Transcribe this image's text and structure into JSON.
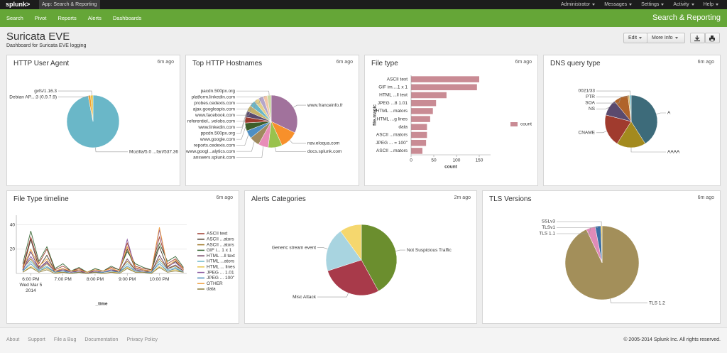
{
  "topbar": {
    "logo": "splunk>",
    "app": "App: Search & Reporting",
    "menu": [
      "Administrator",
      "Messages",
      "Settings",
      "Activity",
      "Help"
    ]
  },
  "nav": {
    "items": [
      "Search",
      "Pivot",
      "Reports",
      "Alerts",
      "Dashboards"
    ],
    "app_title": "Search & Reporting"
  },
  "header": {
    "title": "Suricata EVE",
    "subtitle": "Dashboard for Suricata EVE logging",
    "buttons": [
      "Edit",
      "More Info"
    ]
  },
  "chart_data": [
    {
      "type": "pie",
      "title": "HTTP User Agent",
      "updated": "6m ago",
      "categories": [
        "Mozilla/5.0 ...fari/537.36",
        "Debian AP...:3 (0.9.7.9)",
        "gvfs/1.16.3"
      ],
      "values": [
        97,
        1.5,
        1.5
      ],
      "colors": [
        "#6ab7c8",
        "#f0a030",
        "#e8c44a"
      ]
    },
    {
      "type": "pie",
      "title": "Top HTTP Hostnames",
      "updated": "6m ago",
      "categories": [
        "www.franceinfo.fr",
        "nav.eloqua.com",
        "docs.splunk.com",
        "answers.splunk.com",
        "www.googl...alytics.com",
        "reports.cedexis.com",
        "www.google.com",
        "ppcdn.500px.org",
        "www.linkedin.com",
        "referentiel...velobs.com",
        "www.facebook.com",
        "ajax.googleapis.com",
        "probes.cedexis.com",
        "platform.linkedin.com",
        "pacdn.500px.org"
      ],
      "values": [
        26,
        9,
        7,
        5,
        5,
        4,
        4,
        3,
        3,
        3,
        3,
        2.5,
        2.5,
        2,
        2
      ],
      "colors": [
        "#a1729c",
        "#f7902b",
        "#99c24d",
        "#e88db8",
        "#a08a5e",
        "#4e8fc4",
        "#3d5e2a",
        "#9e3b2e",
        "#5a4a6e",
        "#c7b36a",
        "#6ab7c8",
        "#e3d08a",
        "#b5a6c9",
        "#f3c6a6",
        "#c9d6a3"
      ]
    },
    {
      "type": "bar",
      "orientation": "horizontal",
      "title": "File type",
      "updated": "6m ago",
      "categories": [
        "ASCII text",
        "GIF im....1 x 1",
        "HTML ...ll text",
        "JPEG ...8 1.01",
        "HTML ...mators",
        "HTML ...g lines",
        "data",
        "ASCII ...mators",
        "JPEG ... = 100\"",
        "ASCII ...mators"
      ],
      "series": [
        {
          "name": "count",
          "color": "#c98b94",
          "values": [
            150,
            145,
            78,
            55,
            48,
            42,
            35,
            35,
            33,
            25
          ]
        }
      ],
      "xlim": [
        0,
        175
      ],
      "xticks": [
        0,
        50,
        100,
        150
      ],
      "x_label": "count",
      "y_label": "file.magic"
    },
    {
      "type": "pie",
      "title": "DNS query type",
      "updated": "6m ago",
      "categories": [
        "A",
        "AAAA",
        "CNAME",
        "NS",
        "SOA",
        "PTR",
        "0021/33"
      ],
      "values": [
        41,
        18,
        20,
        10,
        9,
        1,
        1
      ],
      "colors": [
        "#3d6b7a",
        "#a38a1e",
        "#a03b2e",
        "#5a4a6e",
        "#b0642a",
        "#d9b45a",
        "#6ab7c8"
      ]
    },
    {
      "type": "line",
      "title": "File Type timeline",
      "updated": "6m ago",
      "x_label": "_time",
      "grid": true,
      "x": [
        17.75,
        18,
        18.25,
        18.5,
        18.75,
        19,
        19.25,
        19.5,
        19.75,
        20,
        20.25,
        20.5,
        20.75,
        21,
        21.25,
        21.5,
        21.75,
        22,
        22.25,
        22.5,
        22.75
      ],
      "xlim": [
        17.55,
        22.85
      ],
      "xticks": [
        {
          "value": 18,
          "label": "6:00 PM\nWed Mar 5\n2014"
        },
        {
          "value": 19,
          "label": "7:00 PM"
        },
        {
          "value": 20,
          "label": "8:00 PM"
        },
        {
          "value": 21,
          "label": "9:00 PM"
        },
        {
          "value": 22,
          "label": "10:00 PM"
        }
      ],
      "ylim": [
        0,
        48
      ],
      "yticks": [
        20,
        40
      ],
      "series": [
        {
          "name": "ASCII text",
          "color": "#9e3b2e",
          "values": [
            5,
            30,
            8,
            20,
            3,
            6,
            2,
            4,
            1,
            3,
            2,
            5,
            3,
            25,
            6,
            4,
            3,
            30,
            8,
            12,
            4
          ]
        },
        {
          "name": "ASCII ...ators",
          "color": "#4a3a2a",
          "values": [
            3,
            28,
            5,
            15,
            2,
            4,
            1,
            3,
            1,
            2,
            1,
            3,
            2,
            20,
            4,
            3,
            2,
            22,
            5,
            10,
            3
          ]
        },
        {
          "name": "ASCII ...ators",
          "color": "#a07a2a",
          "values": [
            4,
            12,
            3,
            8,
            2,
            3,
            1,
            2,
            1,
            2,
            1,
            2,
            2,
            10,
            3,
            2,
            2,
            12,
            4,
            6,
            2
          ]
        },
        {
          "name": "GIF i... 1 x 1",
          "color": "#3d6b3a",
          "values": [
            8,
            35,
            10,
            22,
            4,
            8,
            2,
            5,
            1,
            4,
            2,
            6,
            3,
            18,
            8,
            5,
            3,
            25,
            10,
            14,
            5
          ]
        },
        {
          "name": "HTML ...ll text",
          "color": "#6a3a5a",
          "values": [
            2,
            18,
            4,
            10,
            1,
            3,
            1,
            2,
            0,
            2,
            1,
            3,
            1,
            12,
            3,
            2,
            1,
            15,
            4,
            7,
            2
          ]
        },
        {
          "name": "HTML ...ators",
          "color": "#6ab7c8",
          "values": [
            2,
            10,
            3,
            6,
            1,
            2,
            1,
            1,
            0,
            1,
            1,
            2,
            1,
            8,
            2,
            1,
            1,
            10,
            3,
            5,
            1
          ]
        },
        {
          "name": "HTML ... lines",
          "color": "#e8c44a",
          "values": [
            1,
            6,
            2,
            4,
            1,
            1,
            0,
            1,
            0,
            1,
            0,
            1,
            1,
            5,
            1,
            1,
            0,
            6,
            2,
            3,
            1
          ]
        },
        {
          "name": "JPEG ... 1.01",
          "color": "#8a5aa0",
          "values": [
            3,
            14,
            4,
            9,
            2,
            3,
            1,
            2,
            1,
            2,
            1,
            3,
            2,
            28,
            4,
            3,
            2,
            36,
            6,
            9,
            3
          ]
        },
        {
          "name": "JPEG ... 100\"",
          "color": "#4a8ab8",
          "values": [
            2,
            8,
            2,
            5,
            1,
            2,
            0,
            1,
            0,
            1,
            1,
            2,
            1,
            6,
            2,
            1,
            1,
            8,
            2,
            4,
            1
          ]
        },
        {
          "name": "OTHER",
          "color": "#f0a040",
          "values": [
            4,
            20,
            6,
            12,
            2,
            4,
            2,
            3,
            1,
            3,
            2,
            4,
            2,
            22,
            5,
            3,
            2,
            38,
            6,
            11,
            3
          ]
        },
        {
          "name": "data",
          "color": "#8a7a3a",
          "values": [
            1,
            5,
            1,
            3,
            0,
            1,
            0,
            1,
            0,
            1,
            0,
            1,
            0,
            4,
            1,
            1,
            0,
            5,
            1,
            2,
            1
          ]
        }
      ]
    },
    {
      "type": "pie",
      "title": "Alerts Categories",
      "updated": "2m ago",
      "categories": [
        "Not Suspicious Traffic",
        "Misc Attack",
        "Generic stream event",
        null
      ],
      "values": [
        42,
        28,
        20,
        10
      ],
      "colors": [
        "#6b8e2e",
        "#a83a4a",
        "#a8d4e0",
        "#f5d76e"
      ]
    },
    {
      "type": "pie",
      "title": "TLS Versions",
      "updated": "6m ago",
      "categories": [
        "TLS 1.2",
        "TLS 1.1",
        "TLSv1",
        "SSLv3"
      ],
      "values": [
        93,
        4,
        2.5,
        0.5
      ],
      "colors": [
        "#a38f5a",
        "#e08bb8",
        "#3a6ea5",
        "#f0c040"
      ]
    }
  ],
  "footer": {
    "links": [
      "About",
      "Support",
      "File a Bug",
      "Documentation",
      "Privacy Policy"
    ],
    "copyright": "© 2005-2014 Splunk Inc. All rights reserved."
  }
}
